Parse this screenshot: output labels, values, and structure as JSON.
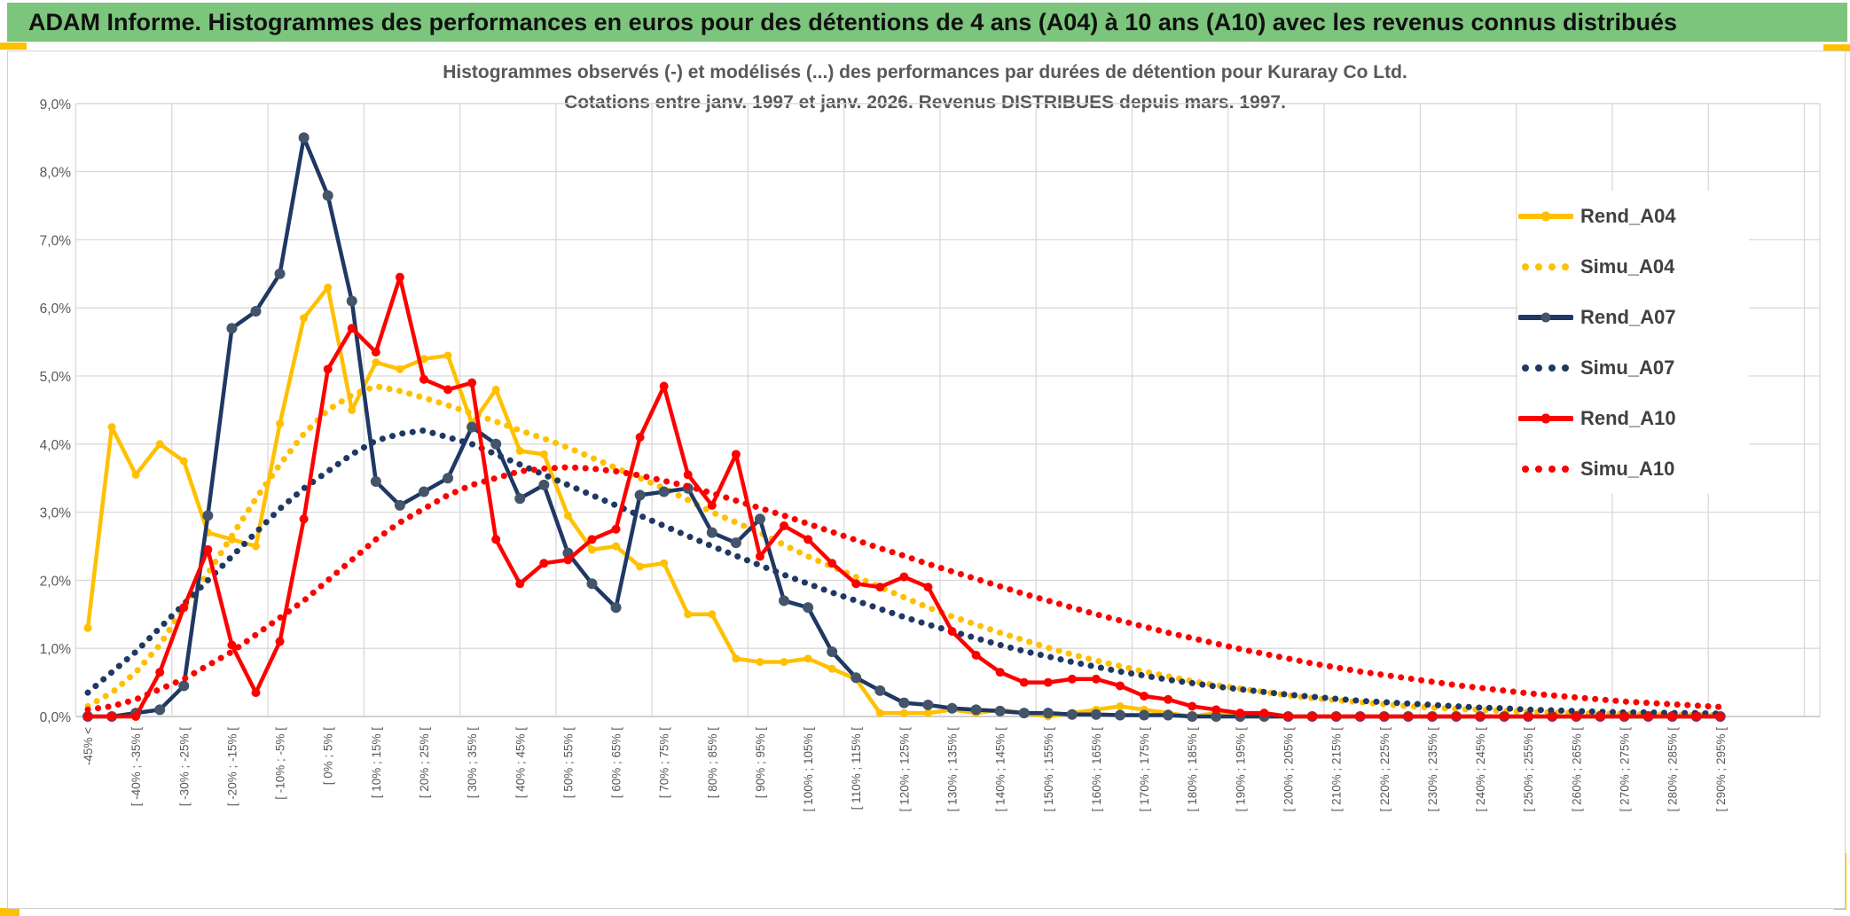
{
  "header": {
    "title": "ADAM Informe. Histogrammes des performances en euros pour des détentions de 4 ans (A04) à 10 ans (A10) avec les revenus connus distribués"
  },
  "colors": {
    "header_bg": "#7cc57c",
    "accent_gold": "#ffc000",
    "grid": "#d9d9d9",
    "axis_line": "#bfbfbf",
    "axis_text": "#595959",
    "title_text": "#595959",
    "legend_text": "#404040",
    "card_border": "#d0cece"
  },
  "chart_data": {
    "type": "line",
    "title": "Histogrammes observés (-) et modélisés (...) des performances par durées de détention pour Kuraray Co Ltd.",
    "subtitle": "Cotations entre janv. 1997 et janv. 2026. Revenus DISTRIBUES depuis mars. 1997.",
    "ylim": [
      0,
      9
    ],
    "ytick_labels": [
      "0,0%",
      "1,0%",
      "2,0%",
      "3,0%",
      "4,0%",
      "5,0%",
      "6,0%",
      "7,0%",
      "8,0%",
      "9,0%"
    ],
    "n_buckets": 69,
    "tick_every": 2,
    "grid_every_buckets": 4,
    "categories": [
      "-45% <",
      "[ -40% ; -35% [",
      "[ -30% ; -25% [",
      "[ -20% ; -15% [",
      "[ -10% ; -5% [",
      "[ 0% ; 5% [",
      "[ 10% ; 15% [",
      "[ 20% ; 25% [",
      "[ 30% ; 35% [",
      "[ 40% ; 45% [",
      "[ 50% ; 55% [",
      "[ 60% ; 65% [",
      "[ 70% ; 75% [",
      "[ 80% ; 85% [",
      "[ 90% ; 95% [",
      "[ 100% ; 105% [",
      "[ 110% ; 115% [",
      "[ 120% ; 125% [",
      "[ 130% ; 135% [",
      "[ 140% ; 145% [",
      "[ 150% ; 155% [",
      "[ 160% ; 165% [",
      "[ 170% ; 175% [",
      "[ 180% ; 185% [",
      "[ 190% ; 195% [",
      "[ 200% ; 205% [",
      "[ 210% ; 215% [",
      "[ 220% ; 225% [",
      "[ 230% ; 235% [",
      "[ 240% ; 245% [",
      "[ 250% ; 255% [",
      "[ 260% ; 265% [",
      "[ 270% ; 275% [",
      "[ 280% ; 285% [",
      "[ 290% ; 295% ["
    ],
    "legend_position": "right",
    "series": [
      {
        "name": "Rend_A04",
        "style": "solid",
        "color": "#ffc000",
        "marker_color": "#ffc000",
        "marker_r": 4.5,
        "values": [
          1.3,
          4.25,
          3.55,
          4.0,
          3.75,
          2.7,
          2.6,
          2.5,
          4.3,
          5.85,
          6.3,
          4.5,
          5.2,
          5.1,
          5.25,
          5.3,
          4.3,
          4.8,
          3.9,
          3.85,
          2.95,
          2.45,
          2.5,
          2.2,
          2.25,
          1.5,
          1.5,
          0.85,
          0.8,
          0.8,
          0.85,
          0.7,
          0.55,
          0.05,
          0.05,
          0.05,
          0.1,
          0.05,
          0.1,
          0.05,
          0,
          0.05,
          0.1,
          0.15,
          0.1,
          0.05,
          0,
          0.05,
          0,
          0,
          0,
          0,
          0,
          0,
          0,
          0,
          0,
          0,
          0,
          0,
          0,
          0,
          0,
          0,
          0,
          0,
          0,
          0,
          0
        ]
      },
      {
        "name": "Simu_A04",
        "style": "dotted",
        "color": "#ffc000",
        "marker_color": "#ffc000",
        "marker_r": 0,
        "values": [
          0.15,
          0.35,
          0.65,
          1.05,
          1.6,
          2.1,
          2.65,
          3.2,
          3.7,
          4.15,
          4.5,
          4.72,
          4.85,
          4.78,
          4.68,
          4.57,
          4.45,
          4.33,
          4.2,
          4.08,
          3.95,
          3.8,
          3.65,
          3.5,
          3.35,
          3.18,
          3.0,
          2.85,
          2.7,
          2.52,
          2.35,
          2.2,
          2.05,
          1.9,
          1.75,
          1.6,
          1.47,
          1.35,
          1.23,
          1.12,
          1.01,
          0.91,
          0.82,
          0.74,
          0.66,
          0.59,
          0.52,
          0.46,
          0.41,
          0.36,
          0.31,
          0.27,
          0.24,
          0.21,
          0.18,
          0.15,
          0.13,
          0.11,
          0.1,
          0.08,
          0.07,
          0.06,
          0.05,
          0.04,
          0.04,
          0.03,
          0.03,
          0.02,
          0.02
        ]
      },
      {
        "name": "Rend_A07",
        "style": "solid",
        "color": "#1f3864",
        "marker_color": "#44546a",
        "marker_r": 6,
        "values": [
          0,
          0,
          0.05,
          0.1,
          0.45,
          2.95,
          5.7,
          5.95,
          6.5,
          8.5,
          7.65,
          6.1,
          3.45,
          3.1,
          3.3,
          3.5,
          4.25,
          4.0,
          3.2,
          3.4,
          2.4,
          1.95,
          1.6,
          3.25,
          3.3,
          3.35,
          2.7,
          2.55,
          2.9,
          1.7,
          1.6,
          0.95,
          0.57,
          0.38,
          0.2,
          0.17,
          0.12,
          0.1,
          0.08,
          0.05,
          0.05,
          0.03,
          0.03,
          0.02,
          0.02,
          0.02,
          0,
          0,
          0,
          0,
          0,
          0,
          0,
          0,
          0,
          0,
          0,
          0,
          0,
          0,
          0,
          0,
          0,
          0,
          0,
          0,
          0,
          0,
          0
        ]
      },
      {
        "name": "Simu_A07",
        "style": "dotted",
        "color": "#1f3864",
        "marker_color": "#1f3864",
        "marker_r": 0,
        "values": [
          0.35,
          0.65,
          0.95,
          1.3,
          1.65,
          2.0,
          2.35,
          2.7,
          3.05,
          3.35,
          3.6,
          3.85,
          4.05,
          4.15,
          4.2,
          4.1,
          4.0,
          3.85,
          3.7,
          3.55,
          3.4,
          3.25,
          3.1,
          2.95,
          2.8,
          2.65,
          2.5,
          2.36,
          2.22,
          2.08,
          1.95,
          1.82,
          1.7,
          1.58,
          1.46,
          1.35,
          1.25,
          1.15,
          1.05,
          0.96,
          0.88,
          0.8,
          0.73,
          0.66,
          0.6,
          0.54,
          0.49,
          0.44,
          0.4,
          0.36,
          0.32,
          0.29,
          0.26,
          0.23,
          0.21,
          0.19,
          0.17,
          0.15,
          0.13,
          0.12,
          0.1,
          0.09,
          0.08,
          0.07,
          0.06,
          0.06,
          0.05,
          0.05,
          0.04
        ]
      },
      {
        "name": "Rend_A10",
        "style": "solid",
        "color": "#ff0000",
        "marker_color": "#ff0000",
        "marker_r": 5,
        "values": [
          0,
          0,
          0,
          0.65,
          1.6,
          2.45,
          1.05,
          0.35,
          1.1,
          2.9,
          5.1,
          5.7,
          5.35,
          6.45,
          4.95,
          4.8,
          4.9,
          2.6,
          1.95,
          2.25,
          2.3,
          2.6,
          2.75,
          4.1,
          4.85,
          3.55,
          3.1,
          3.85,
          2.35,
          2.8,
          2.6,
          2.25,
          1.95,
          1.9,
          2.05,
          1.9,
          1.25,
          0.9,
          0.65,
          0.5,
          0.5,
          0.55,
          0.55,
          0.45,
          0.3,
          0.25,
          0.15,
          0.1,
          0.05,
          0.05,
          0,
          0,
          0,
          0,
          0,
          0,
          0,
          0,
          0,
          0,
          0,
          0,
          0,
          0,
          0,
          0,
          0,
          0,
          0
        ]
      },
      {
        "name": "Simu_A10",
        "style": "dotted",
        "color": "#ff0000",
        "marker_color": "#ff0000",
        "marker_r": 0,
        "values": [
          0.1,
          0.15,
          0.25,
          0.4,
          0.55,
          0.75,
          0.95,
          1.2,
          1.45,
          1.7,
          2.0,
          2.3,
          2.6,
          2.85,
          3.05,
          3.25,
          3.4,
          3.5,
          3.6,
          3.64,
          3.66,
          3.64,
          3.6,
          3.54,
          3.46,
          3.38,
          3.28,
          3.17,
          3.06,
          2.95,
          2.83,
          2.71,
          2.59,
          2.47,
          2.36,
          2.24,
          2.13,
          2.02,
          1.91,
          1.8,
          1.7,
          1.6,
          1.5,
          1.41,
          1.32,
          1.23,
          1.15,
          1.07,
          0.99,
          0.92,
          0.85,
          0.78,
          0.72,
          0.66,
          0.61,
          0.56,
          0.51,
          0.46,
          0.42,
          0.38,
          0.34,
          0.31,
          0.28,
          0.25,
          0.22,
          0.2,
          0.18,
          0.16,
          0.14
        ]
      }
    ]
  }
}
